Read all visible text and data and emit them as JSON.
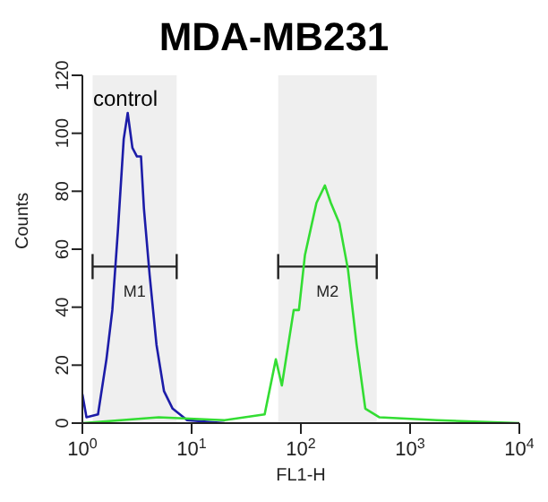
{
  "chart_data": {
    "type": "line",
    "title": "MDA-MB231",
    "xlabel": "FL1-H",
    "ylabel": "Counts",
    "log": "x",
    "xlim": [
      1,
      10000
    ],
    "xticks": [
      {
        "value": 1,
        "label": "10$^{0}$"
      },
      {
        "value": 10,
        "label": "10$^{1}$"
      },
      {
        "value": 100,
        "label": "10$^{2}$"
      },
      {
        "value": 1000,
        "label": "10$^{3}$"
      },
      {
        "value": 10000,
        "label": "10$^{4}$"
      }
    ],
    "ylim": [
      0,
      120
    ],
    "yticks": [
      0,
      20,
      40,
      60,
      80,
      100,
      120
    ],
    "marker": "none",
    "line_style": "solid",
    "annotations": [
      "control"
    ],
    "bands": [
      {
        "axis": "x",
        "from": 1.24,
        "to": 7.3,
        "label": "M1",
        "color": "#222222"
      },
      {
        "axis": "x",
        "from": 62,
        "to": 495,
        "label": "M2",
        "color": "#222222"
      }
    ],
    "series": [
      {
        "color": "#1c1ca8",
        "x": [
          1,
          1.09,
          1.39,
          1.66,
          1.88,
          2.12,
          2.39,
          2.6,
          2.87,
          3.16,
          3.44,
          3.66,
          4.13,
          4.77,
          5.59,
          6.7,
          9.1,
          20
        ],
        "values": [
          10,
          2,
          3,
          22,
          39,
          67,
          98,
          107,
          95,
          92,
          92,
          74,
          51,
          27,
          11,
          5,
          1,
          0
        ]
      },
      {
        "color": "#33dd33",
        "x": [
          1,
          5,
          20,
          46.6,
          59,
          67,
          86,
          96,
          109,
          139,
          166,
          188,
          225,
          270,
          324,
          389,
          525,
          1770,
          10000
        ],
        "values": [
          0,
          2,
          1,
          3,
          22,
          13,
          39,
          39,
          58,
          76,
          82,
          76,
          69,
          53,
          27,
          5,
          2,
          1,
          0
        ]
      }
    ]
  }
}
